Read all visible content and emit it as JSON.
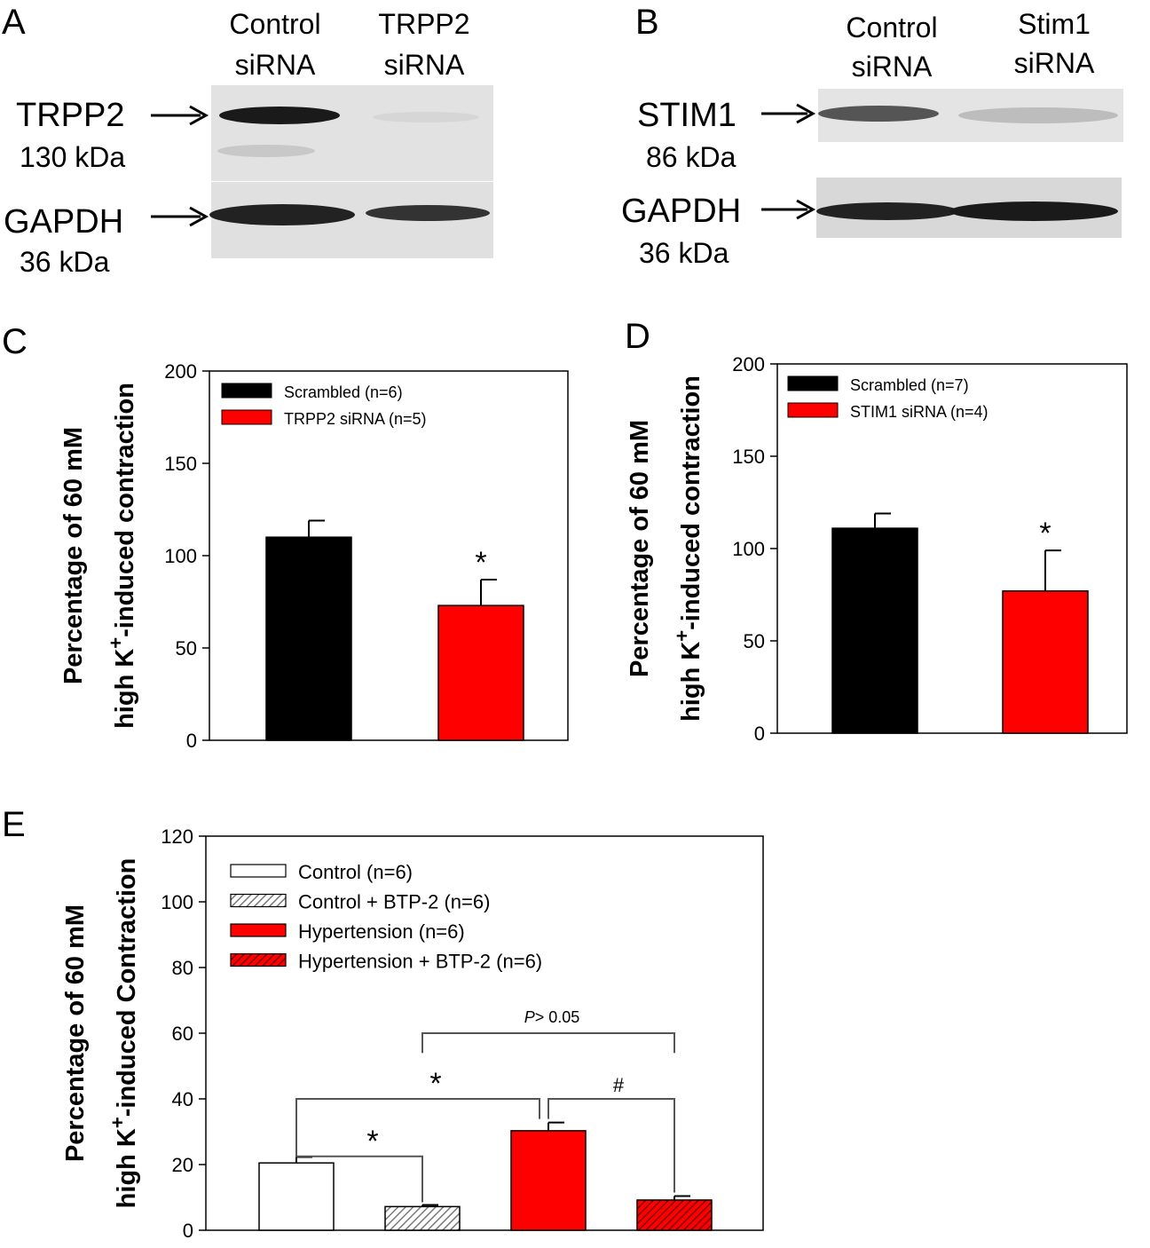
{
  "panels": {
    "a": "A",
    "b": "B",
    "c": "C",
    "d": "D",
    "e": "E"
  },
  "blot_a": {
    "lanes": [
      {
        "line1": "Control",
        "line2": "siRNA"
      },
      {
        "line1": "TRPP2",
        "line2": "siRNA"
      }
    ],
    "bands": [
      {
        "name": "TRPP2",
        "size": "130 kDa"
      },
      {
        "name": "GAPDH",
        "size": "36 kDa"
      }
    ]
  },
  "blot_b": {
    "lanes": [
      {
        "line1": "Control",
        "line2": "siRNA"
      },
      {
        "line1": "Stim1",
        "line2": "siRNA"
      }
    ],
    "bands": [
      {
        "name": "STIM1",
        "size": "86 kDa"
      },
      {
        "name": "GAPDH",
        "size": "36 kDa"
      }
    ]
  },
  "colors": {
    "black": "#000000",
    "red": "#ff0000",
    "white": "#ffffff",
    "hatch_gray": "#9a9a9a",
    "hatch_red": "#8b0000"
  },
  "chart_data": [
    {
      "id": "C",
      "type": "bar",
      "ylabel_line1": "Percentage of 60 mM",
      "ylabel_line2": "high K",
      "ylabel_sup": "+",
      "ylabel_line2_tail": "-induced contraction",
      "ylim": [
        0,
        200
      ],
      "yticks": [
        "0",
        "50",
        "100",
        "150",
        "200"
      ],
      "series": [
        {
          "name": "Scrambled (n=6)",
          "value": 110,
          "error": 9,
          "color": "#000000"
        },
        {
          "name": "TRPP2 siRNA (n=5)",
          "value": 73,
          "error": 14,
          "color": "#ff0000"
        }
      ],
      "significance": "*"
    },
    {
      "id": "D",
      "type": "bar",
      "ylabel_line1": "Percentage of 60 mM",
      "ylabel_line2": "high K",
      "ylabel_sup": "+",
      "ylabel_line2_tail": "-induced contraction",
      "ylim": [
        0,
        200
      ],
      "yticks": [
        "0",
        "50",
        "100",
        "150",
        "200"
      ],
      "series": [
        {
          "name": "Scrambled (n=7)",
          "value": 111,
          "error": 8,
          "color": "#000000"
        },
        {
          "name": "STIM1 siRNA (n=4)",
          "value": 77,
          "error": 22,
          "color": "#ff0000"
        }
      ],
      "significance": "*"
    },
    {
      "id": "E",
      "type": "bar",
      "ylabel_line1": "Percentage of 60 mM",
      "ylabel_line2": "high K",
      "ylabel_sup": "+",
      "ylabel_line2_tail": "-induced Contraction",
      "ylim": [
        0,
        120
      ],
      "yticks": [
        "0",
        "20",
        "40",
        "60",
        "80",
        "100",
        "120"
      ],
      "series": [
        {
          "name": "Control (n=6)",
          "value": 20.5,
          "error": 1.8,
          "fill": "white"
        },
        {
          "name": "Control + BTP-2 (n=6)",
          "value": 7.2,
          "error": 0.5,
          "fill": "hatch_gray"
        },
        {
          "name": "Hypertension (n=6)",
          "value": 30.3,
          "error": 2.5,
          "fill": "red"
        },
        {
          "name": "Hypertension + BTP-2 (n=6)",
          "value": 9.2,
          "error": 1.2,
          "fill": "hatch_red"
        }
      ],
      "annotations": {
        "star1": "*",
        "star2": "*",
        "hash": "#",
        "p_italic": "P",
        "p_rest": "> 0.05"
      }
    }
  ]
}
